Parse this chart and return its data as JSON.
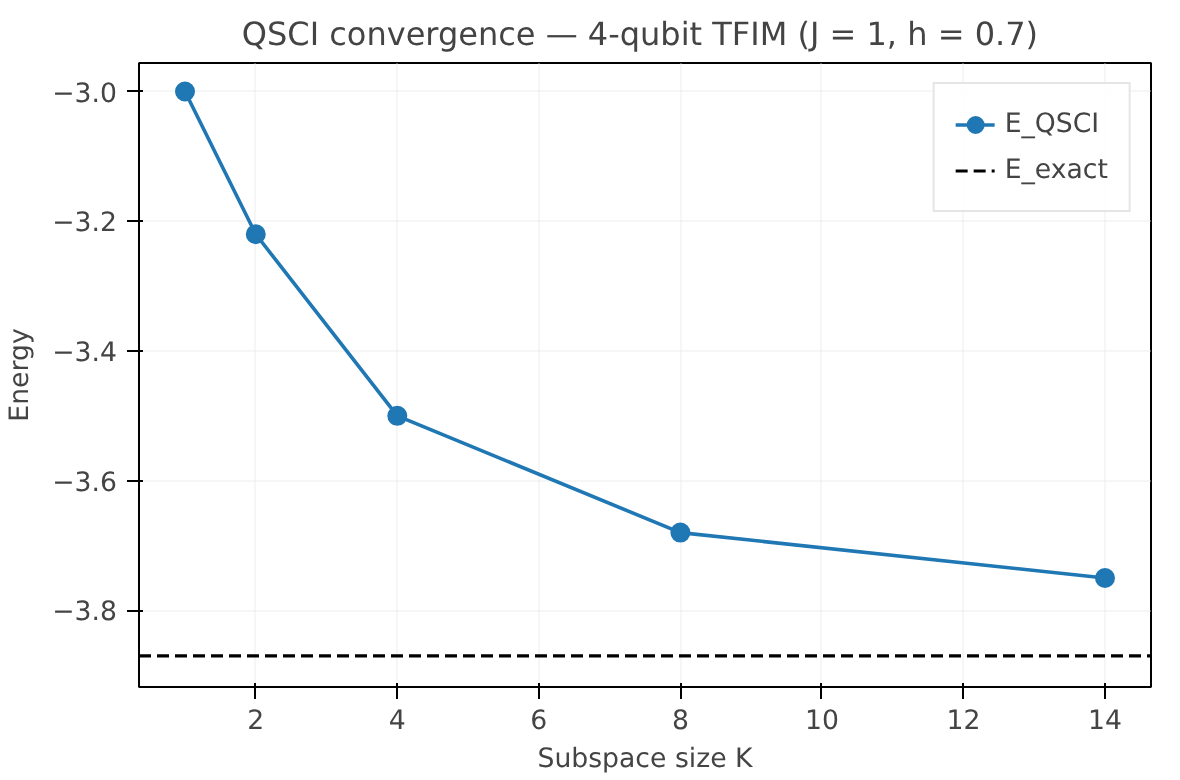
{
  "chart_data": {
    "type": "line",
    "title": "QSCI convergence — 4-qubit TFIM (J = 1,  h = 0.7)",
    "xlabel": "Subspace size K",
    "ylabel": "Energy",
    "x": [
      1,
      2,
      4,
      8,
      14
    ],
    "series": [
      {
        "name": "E_QSCI",
        "color": "#1f77b4",
        "values": [
          -3.0,
          -3.22,
          -3.5,
          -3.68,
          -3.75
        ]
      }
    ],
    "ref_lines": [
      {
        "axis": "y",
        "value": -3.87,
        "label": "E_exact",
        "color": "#000000",
        "line_style": "dashed"
      }
    ],
    "xlim": [
      0.35,
      14.65
    ],
    "ylim": [
      -3.918,
      -2.956
    ],
    "xticks": [
      2,
      4,
      6,
      8,
      10,
      12,
      14
    ],
    "yticks": [
      {
        "value": -3.8,
        "label": "−3.8"
      },
      {
        "value": -3.6,
        "label": "−3.6"
      },
      {
        "value": -3.4,
        "label": "−3.4"
      },
      {
        "value": -3.2,
        "label": "−3.2"
      },
      {
        "value": -3.0,
        "label": "−3.0"
      }
    ],
    "grid": true,
    "legend": "top right",
    "marker": "circle",
    "line_style": "solid"
  }
}
